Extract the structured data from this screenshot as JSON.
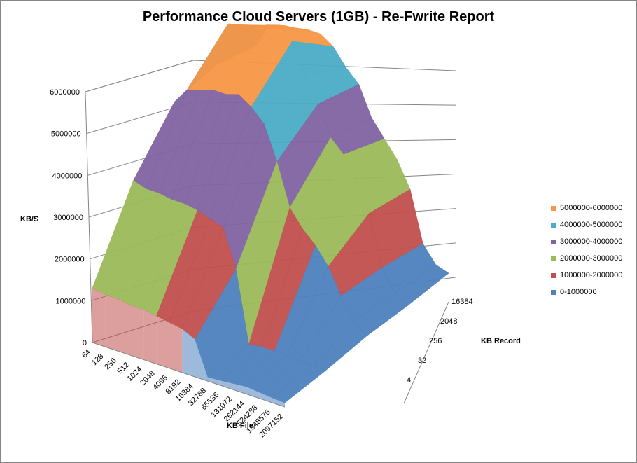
{
  "chart_data": {
    "type": "surface",
    "title": "Performance Cloud Servers (1GB) - Re-Fwrite Report",
    "xlabel": "KB File",
    "ylabel": "KB/S",
    "zlabel": "KB Record",
    "x_categories": [
      "64",
      "128",
      "256",
      "512",
      "1024",
      "2048",
      "4096",
      "8192",
      "16384",
      "32768",
      "65536",
      "131072",
      "262144",
      "524288",
      "1048576",
      "2097152"
    ],
    "z_categories": [
      "4",
      "32",
      "256",
      "2048",
      "16384"
    ],
    "y_ticks": [
      "0",
      "1000000",
      "2000000",
      "3000000",
      "4000000",
      "5000000",
      "6000000"
    ],
    "ylim": [
      0,
      6000000
    ],
    "legend": [
      {
        "label": "5000000-6000000",
        "color": "#F79646"
      },
      {
        "label": "4000000-5000000",
        "color": "#4BACC6"
      },
      {
        "label": "3000000-4000000",
        "color": "#8064A2"
      },
      {
        "label": "2000000-3000000",
        "color": "#9BBB59"
      },
      {
        "label": "1000000-2000000",
        "color": "#C0504D"
      },
      {
        "label": "0-1000000",
        "color": "#4F81BD"
      }
    ],
    "legend_position": "right",
    "grid": true,
    "series": [
      {
        "name": "4",
        "values": [
          1300000,
          1250000,
          1250000,
          1200000,
          1200000,
          1150000,
          1100000,
          1050000,
          900000,
          100000,
          120000,
          150000,
          180000,
          150000,
          120000,
          100000
        ]
      },
      {
        "name": "32",
        "values": [
          3100000,
          3000000,
          3000000,
          2950000,
          2950000,
          2900000,
          2800000,
          2700000,
          1800000,
          100000,
          150000,
          150000,
          150000,
          120000,
          100000,
          100000
        ]
      },
      {
        "name": "256",
        "values": [
          4200000,
          4600000,
          4700000,
          4800000,
          4800000,
          4900000,
          4700000,
          4400000,
          3600000,
          2600000,
          2200000,
          1900000,
          1500000,
          900000,
          400000,
          150000
        ]
      },
      {
        "name": "2048",
        "values": [
          4300000,
          5400000,
          5500000,
          5500000,
          5700000,
          5800000,
          5500000,
          4800000,
          4200000,
          3500000,
          3200000,
          2700000,
          2000000,
          800000,
          300000,
          100000
        ]
      },
      {
        "name": "16384",
        "values": [
          4000000,
          4600000,
          4700000,
          4700000,
          4800000,
          4800000,
          4600000,
          4200000,
          3900000,
          3200000,
          2800000,
          2400000,
          1800000,
          600000,
          200000,
          100000
        ]
      }
    ]
  }
}
